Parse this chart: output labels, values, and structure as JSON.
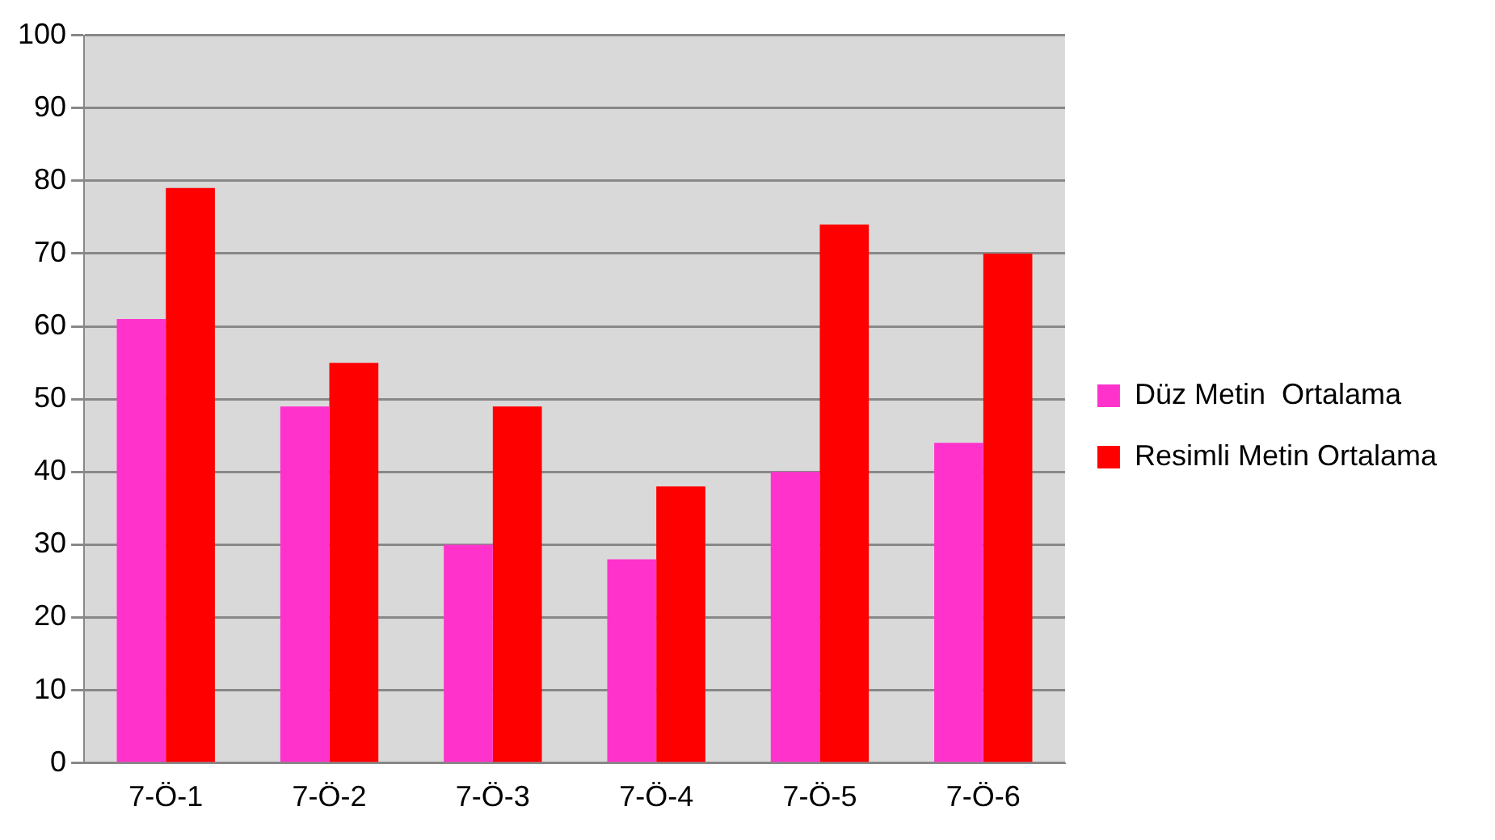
{
  "chart_data": {
    "type": "bar",
    "categories": [
      "7-Ö-1",
      "7-Ö-2",
      "7-Ö-3",
      "7-Ö-4",
      "7-Ö-5",
      "7-Ö-6"
    ],
    "series": [
      {
        "name": "Düz Metin  Ortalama",
        "color": "#ff33cc",
        "values": [
          61,
          49,
          30,
          28,
          40,
          44
        ]
      },
      {
        "name": "Resimli Metin Ortalama",
        "color": "#ff0000",
        "values": [
          79,
          55,
          49,
          38,
          74,
          70
        ]
      }
    ],
    "ylim": [
      0,
      100
    ],
    "yticks": [
      0,
      10,
      20,
      30,
      40,
      50,
      60,
      70,
      80,
      90,
      100
    ],
    "grid": "y",
    "legend": "right"
  }
}
